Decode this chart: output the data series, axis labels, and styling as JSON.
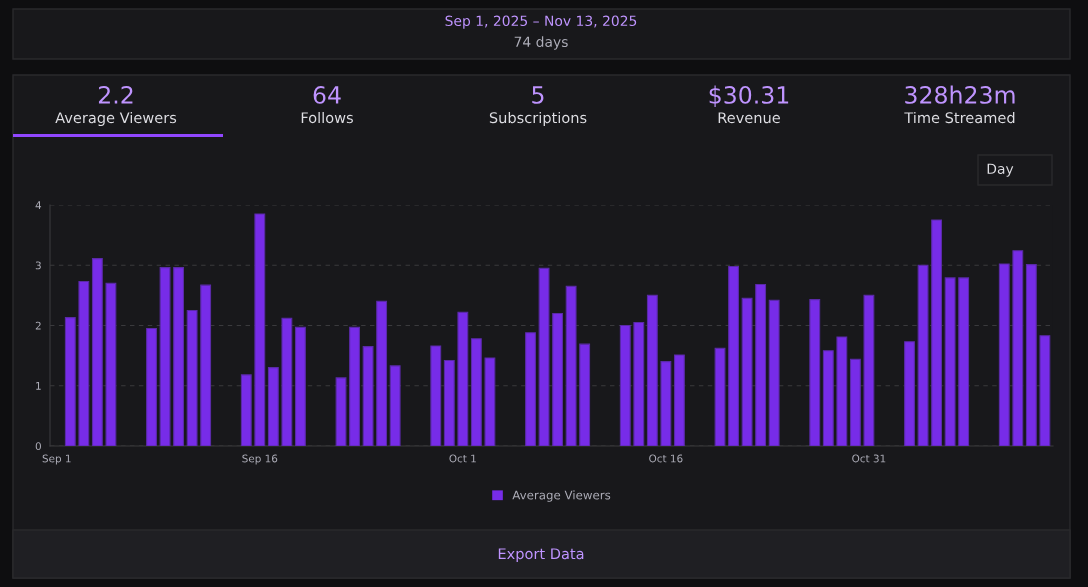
{
  "chart_data": {
    "type": "bar",
    "title": "Sep 1, 2025 – Nov 13, 2025",
    "subtitle": "74 days",
    "annotations": [
      "2.2",
      "Average Viewers",
      "64",
      "Follows",
      "5",
      "Subscriptions",
      "$30.31",
      "Revenue",
      "328h23m",
      "Time Streamed",
      "Day",
      "Export Data"
    ],
    "categories": [
      "Sep 1",
      null,
      null,
      null,
      null,
      null,
      null,
      null,
      null,
      null,
      null,
      null,
      null,
      null,
      null,
      "Sep 16",
      null,
      null,
      null,
      null,
      null,
      null,
      null,
      null,
      null,
      null,
      null,
      null,
      null,
      null,
      "Oct 1",
      null,
      null,
      null,
      null,
      null,
      null,
      null,
      null,
      null,
      null,
      null,
      null,
      null,
      null,
      "Oct 16",
      null,
      null,
      null,
      null,
      null,
      null,
      null,
      null,
      null,
      null,
      null,
      null,
      null,
      null,
      "Oct 31",
      null,
      null,
      null,
      null,
      null,
      null,
      null,
      null,
      null,
      null,
      null,
      null,
      null
    ],
    "series": [
      {
        "name": "Average Viewers",
        "color": "#772ce8",
        "values": [
          null,
          2.13,
          2.73,
          3.11,
          2.7,
          null,
          null,
          1.95,
          2.96,
          2.96,
          2.25,
          2.67,
          null,
          null,
          1.18,
          3.85,
          1.3,
          2.12,
          1.97,
          null,
          null,
          1.13,
          1.97,
          1.65,
          2.4,
          1.33,
          null,
          null,
          1.66,
          1.42,
          2.22,
          1.78,
          1.46,
          null,
          null,
          1.88,
          2.95,
          2.2,
          2.65,
          1.69,
          null,
          null,
          2.0,
          2.05,
          2.5,
          1.4,
          1.51,
          null,
          null,
          1.62,
          2.98,
          2.45,
          2.68,
          2.42,
          null,
          null,
          2.43,
          1.58,
          1.81,
          1.44,
          2.5,
          null,
          null,
          1.73,
          3.0,
          3.75,
          2.79,
          2.79,
          null,
          null,
          3.02,
          3.24,
          3.01,
          1.83
        ]
      }
    ],
    "ylim": [
      0,
      4
    ],
    "yticks": [
      0,
      1,
      2,
      3,
      4
    ],
    "grid": "y",
    "legend": "bottom"
  }
}
